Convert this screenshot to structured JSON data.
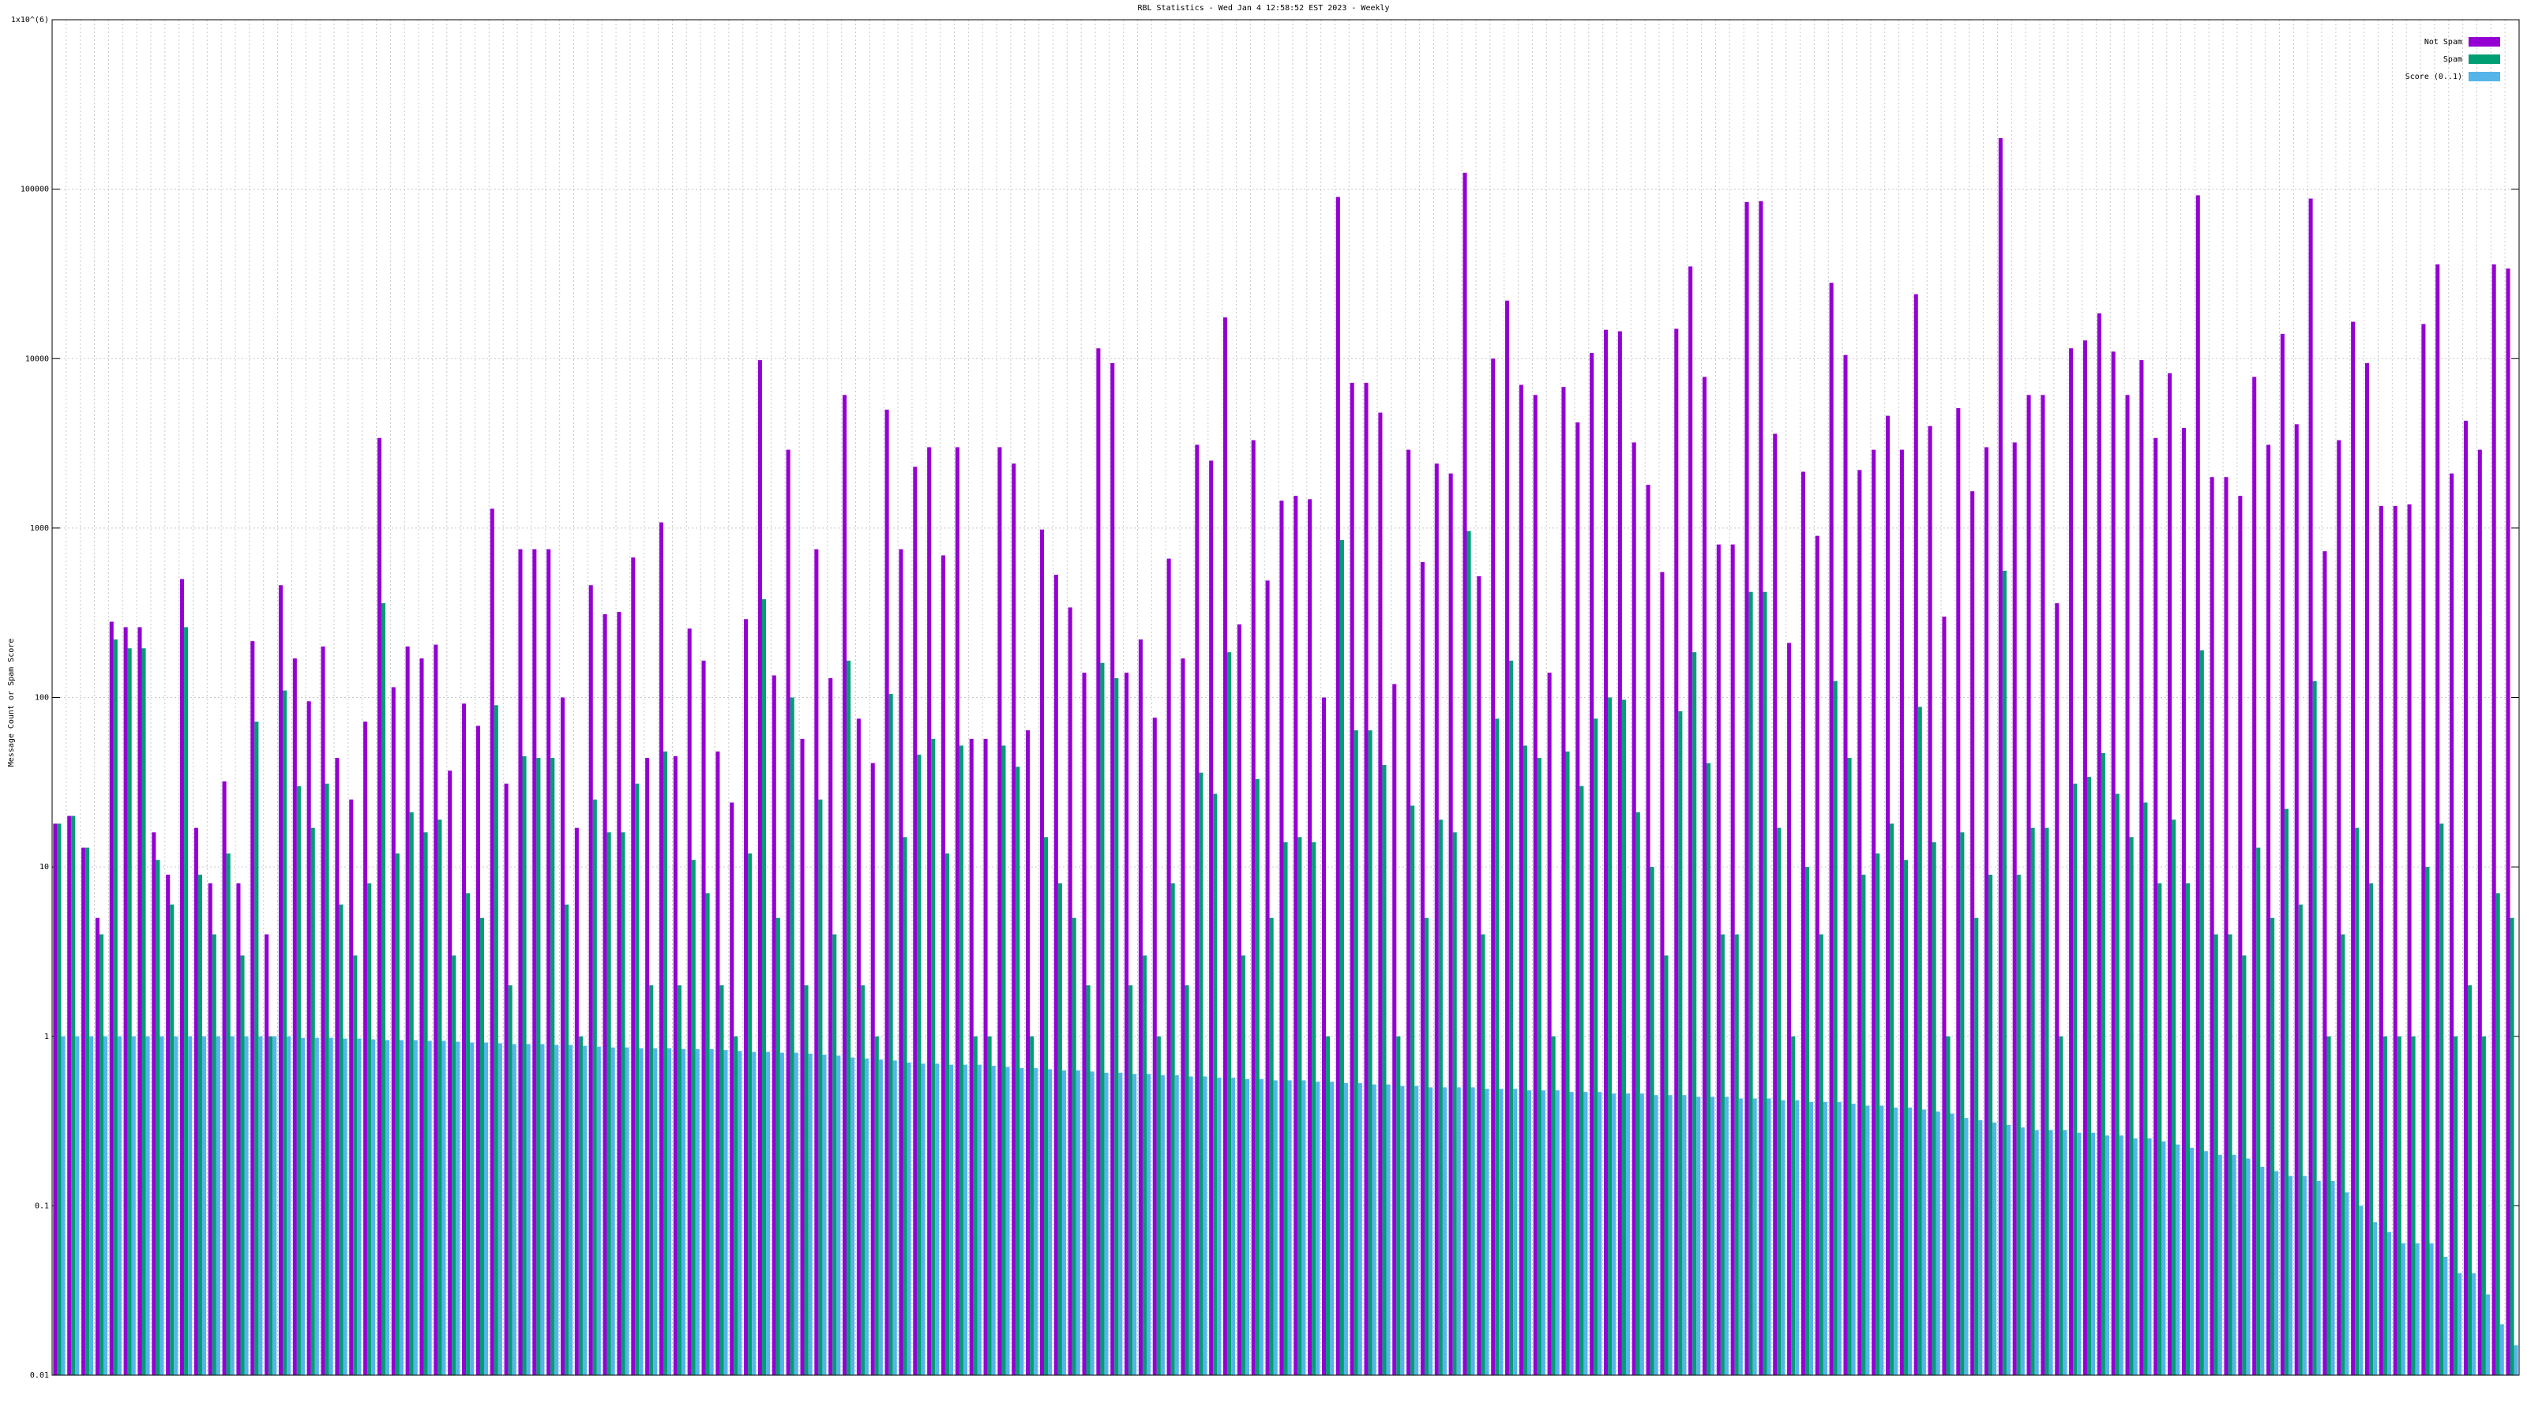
{
  "chart_data": {
    "type": "bar",
    "title": "RBL Statistics - Wed Jan  4 12:58:52 EST 2023 - Weekly",
    "y_label": "Message Count or Spam Score",
    "log_scale": true,
    "grid": true,
    "legend": "top-right",
    "ylim": [
      0.01,
      1000000
    ],
    "yticks": [
      0.01,
      0.1,
      1,
      10,
      100,
      1000,
      10000,
      100000,
      {
        "value": 1000000,
        "label": "1x10^(6)"
      }
    ],
    "categories": [
      null,
      null,
      null,
      null,
      null,
      null,
      null,
      null,
      null,
      null,
      null,
      null,
      null,
      null,
      null,
      null,
      null,
      null,
      null,
      null,
      null,
      null,
      null,
      null,
      null,
      null,
      null,
      null,
      null,
      null,
      null,
      null,
      null,
      null,
      null,
      null,
      null,
      null,
      null,
      null,
      null,
      null,
      null,
      null,
      null,
      null,
      null,
      null,
      null,
      null,
      null,
      null,
      null,
      null,
      null,
      null,
      null,
      null,
      null,
      null,
      null,
      null,
      null,
      null,
      null,
      null,
      null,
      null,
      null,
      null,
      null,
      null,
      null,
      null,
      null,
      null,
      null,
      null,
      null,
      null,
      null,
      null,
      null,
      null,
      null,
      null,
      null,
      null,
      null,
      null,
      null,
      null,
      null,
      null,
      null,
      null,
      null,
      null,
      null,
      null,
      null,
      null,
      null,
      null,
      null,
      null,
      null,
      null,
      null,
      null,
      null,
      null,
      null,
      null,
      null,
      null,
      null,
      null,
      null,
      null,
      null,
      null,
      null,
      null,
      null,
      null,
      null,
      null,
      null,
      null,
      null,
      null,
      null,
      null,
      null,
      null,
      null,
      null,
      null,
      null,
      null,
      null,
      null,
      null,
      null,
      null,
      null,
      null,
      null,
      null,
      null,
      null,
      null,
      null,
      null,
      null,
      null,
      null,
      null,
      null,
      null,
      null,
      null,
      null,
      null,
      null,
      null,
      null,
      null,
      null,
      null,
      null,
      null,
      null,
      null
    ],
    "series": [
      {
        "name": "Not Spam",
        "color": "#9400d3",
        "values": [
          18,
          20,
          13,
          5,
          280,
          260,
          260,
          16,
          9,
          500,
          17,
          8,
          32,
          8,
          215,
          4,
          460,
          170,
          95,
          200,
          44,
          25,
          72,
          3400,
          115,
          200,
          170,
          205,
          37,
          92,
          68,
          1300,
          31,
          750,
          750,
          750,
          100,
          17,
          460,
          310,
          320,
          670,
          44,
          1080,
          45,
          255,
          165,
          48,
          24,
          290,
          9800,
          135,
          2900,
          57,
          750,
          130,
          6100,
          75,
          41,
          5000,
          750,
          2300,
          3000,
          690,
          3000,
          57,
          57,
          3000,
          2400,
          64,
          980,
          530,
          340,
          140,
          11500,
          9400,
          140,
          220,
          76,
          660,
          170,
          3100,
          2500,
          17500,
          270,
          3300,
          490,
          1450,
          1550,
          1480,
          100,
          90000,
          7200,
          7200,
          4800,
          120,
          2900,
          630,
          2400,
          2100,
          125000,
          520,
          10000,
          22000,
          7000,
          6100,
          140,
          6800,
          4200,
          10800,
          14800,
          14500,
          3200,
          1800,
          550,
          15000,
          35000,
          7800,
          800,
          800,
          84000,
          85000,
          3600,
          210,
          2150,
          900,
          28000,
          10500,
          2200,
          2900,
          4600,
          2900,
          24000,
          4000,
          300,
          5100,
          1650,
          3000,
          200000,
          3200,
          6100,
          6100,
          360,
          11500,
          12800,
          18500,
          11000,
          6100,
          9800,
          3400,
          8200,
          3900,
          92000,
          2000,
          2000,
          1550,
          7800,
          3100,
          14000,
          4100,
          88000,
          730,
          3300,
          16500,
          9400,
          1350,
          1350,
          1380,
          16000,
          36000,
          2100,
          4300,
          2900,
          36000,
          34000
        ]
      },
      {
        "name": "Spam",
        "color": "#009e73",
        "values": [
          18,
          20,
          13,
          4,
          220,
          195,
          195,
          11,
          6,
          260,
          9,
          4,
          12,
          3,
          72,
          1,
          110,
          30,
          17,
          31,
          6,
          3,
          8,
          360,
          12,
          21,
          16,
          19,
          3,
          7,
          5,
          90,
          2,
          45,
          44,
          44,
          6,
          1,
          25,
          16,
          16,
          31,
          2,
          48,
          2,
          11,
          7,
          2,
          1,
          12,
          380,
          5,
          100,
          2,
          25,
          4,
          165,
          2,
          1,
          105,
          15,
          46,
          57,
          12,
          52,
          1,
          1,
          52,
          39,
          1,
          15,
          8,
          5,
          2,
          160,
          130,
          2,
          3,
          1,
          8,
          2,
          36,
          27,
          185,
          3,
          33,
          5,
          14,
          15,
          14,
          1,
          850,
          64,
          64,
          40,
          1,
          23,
          5,
          19,
          16,
          960,
          4,
          75,
          165,
          52,
          44,
          1,
          48,
          30,
          75,
          100,
          97,
          21,
          10,
          3,
          83,
          185,
          41,
          4,
          4,
          420,
          420,
          17,
          1,
          10,
          4,
          125,
          44,
          9,
          12,
          18,
          11,
          88,
          14,
          1,
          16,
          5,
          9,
          560,
          9,
          17,
          17,
          1,
          31,
          34,
          47,
          27,
          15,
          24,
          8,
          19,
          8,
          190,
          4,
          4,
          3,
          13,
          5,
          22,
          6,
          125,
          1,
          4,
          17,
          8,
          1,
          1,
          1,
          10,
          18,
          1,
          2,
          1,
          7,
          5
        ]
      },
      {
        "name": "Score (0..1)",
        "color": "#56b4e9",
        "values": [
          1,
          1,
          1,
          1,
          1,
          1,
          1,
          1,
          1,
          1,
          1,
          1,
          1,
          1,
          1,
          1,
          1,
          0.98,
          0.98,
          0.98,
          0.97,
          0.97,
          0.96,
          0.95,
          0.95,
          0.95,
          0.94,
          0.94,
          0.93,
          0.92,
          0.92,
          0.91,
          0.9,
          0.9,
          0.9,
          0.89,
          0.89,
          0.88,
          0.87,
          0.86,
          0.86,
          0.85,
          0.85,
          0.85,
          0.84,
          0.84,
          0.84,
          0.83,
          0.82,
          0.81,
          0.81,
          0.8,
          0.8,
          0.79,
          0.78,
          0.77,
          0.75,
          0.74,
          0.73,
          0.72,
          0.7,
          0.69,
          0.69,
          0.68,
          0.68,
          0.68,
          0.67,
          0.66,
          0.65,
          0.65,
          0.64,
          0.63,
          0.63,
          0.62,
          0.61,
          0.61,
          0.6,
          0.6,
          0.59,
          0.59,
          0.58,
          0.58,
          0.57,
          0.57,
          0.56,
          0.56,
          0.55,
          0.55,
          0.55,
          0.54,
          0.54,
          0.53,
          0.53,
          0.52,
          0.52,
          0.51,
          0.51,
          0.5,
          0.5,
          0.5,
          0.5,
          0.49,
          0.49,
          0.49,
          0.48,
          0.48,
          0.48,
          0.47,
          0.47,
          0.47,
          0.46,
          0.46,
          0.46,
          0.45,
          0.45,
          0.45,
          0.44,
          0.44,
          0.44,
          0.43,
          0.43,
          0.43,
          0.42,
          0.42,
          0.41,
          0.41,
          0.41,
          0.4,
          0.39,
          0.39,
          0.38,
          0.38,
          0.37,
          0.36,
          0.35,
          0.33,
          0.32,
          0.31,
          0.3,
          0.29,
          0.28,
          0.28,
          0.28,
          0.27,
          0.27,
          0.26,
          0.26,
          0.25,
          0.25,
          0.24,
          0.23,
          0.22,
          0.21,
          0.2,
          0.2,
          0.19,
          0.17,
          0.16,
          0.15,
          0.15,
          0.14,
          0.14,
          0.12,
          0.1,
          0.08,
          0.07,
          0.06,
          0.06,
          0.06,
          0.05,
          0.04,
          0.04,
          0.03,
          0.02,
          0.015
        ]
      }
    ]
  }
}
